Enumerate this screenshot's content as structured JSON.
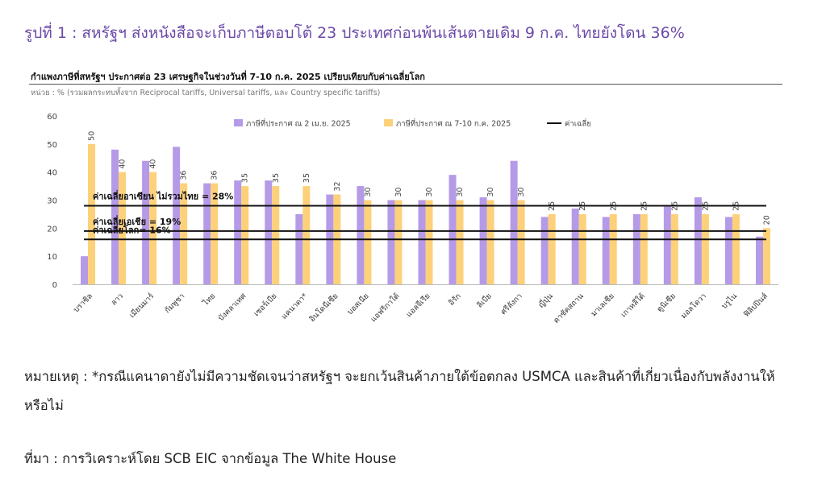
{
  "figure_title": "รูปที่ 1 : สหรัฐฯ ส่งหนังสือจะเก็บภาษีตอบโต้ 23 ประเทศก่อนพ้นเส้นตายเดิม 9 ก.ค. ไทยยังโดน 36%",
  "note": "หมายเหตุ : *กรณีแคนาดายังไม่มีความชัดเจนว่าสหรัฐฯ จะยกเว้นสินค้าภายใต้ข้อตกลง USMCA และสินค้าที่เกี่ยวเนื่องกับพลังงานให้หรือไม่",
  "source": "ที่มา : การวิเคราะห์โดย SCB EIC จากข้อมูล The White House",
  "colors": {
    "series1": "#b59ae8",
    "series2": "#fdd17a",
    "avg_line": "#111111",
    "figure_title": "#6b4aa8"
  },
  "chart_data": {
    "type": "bar",
    "title": "กำแพงภาษีที่สหรัฐฯ ประกาศต่อ 23 เศรษฐกิจในช่วงวันที่ 7-10 ก.ค. 2025 เปรียบเทียบกับค่าเฉลี่ยโลก",
    "unit_label": "หน่วย : % (รวมผลกระทบทั้งจาก Reciprocal tariffs, Universal tariffs, และ Country specific tariffs)",
    "ylim": [
      0,
      60
    ],
    "yticks": [
      0,
      10,
      20,
      30,
      40,
      50,
      60
    ],
    "grid": false,
    "legend_position": "top",
    "categories": [
      "บราซิล",
      "ลาว",
      "เมียนมาร์",
      "กัมพูชา",
      "ไทย",
      "บังคลาเทศ",
      "เซอร์เบีย",
      "แคนาดา*",
      "อินโดนีเซีย",
      "บอสเนีย",
      "แอฟริกาใต้",
      "แอลจีเรีย",
      "อิรัก",
      "ลิเบีย",
      "ศรีลังกา",
      "ญี่ปุ่น",
      "คาซัคสถาน",
      "มาเลเซีย",
      "เกาหลีใต้",
      "ตูนิเซีย",
      "มอลโดวา",
      "บรูไน",
      "ฟิลิปปินส์"
    ],
    "series": [
      {
        "name": "ภาษีที่ประกาศ ณ 2 เม.ย. 2025",
        "values": [
          10,
          48,
          44,
          49,
          36,
          37,
          37,
          25,
          32,
          35,
          30,
          30,
          39,
          31,
          44,
          24,
          27,
          24,
          25,
          28,
          31,
          24,
          17
        ]
      },
      {
        "name": "ภาษีที่ประกาศ ณ 7-10 ก.ค. 2025",
        "values": [
          50,
          40,
          40,
          36,
          36,
          35,
          35,
          35,
          32,
          30,
          30,
          30,
          30,
          30,
          30,
          25,
          25,
          25,
          25,
          25,
          25,
          25,
          20
        ]
      }
    ],
    "legend_avg_label": "ค่าเฉลี่ย",
    "reference_lines": [
      {
        "label": "ค่าเฉลี่ยอาเซียน ไม่รวมไทย = 28%",
        "value": 28
      },
      {
        "label": "ค่าเฉลี่ยเอเชีย = 19%",
        "value": 19
      },
      {
        "label": "ค่าเฉลี่ยโลก= 16%",
        "value": 16
      }
    ]
  }
}
